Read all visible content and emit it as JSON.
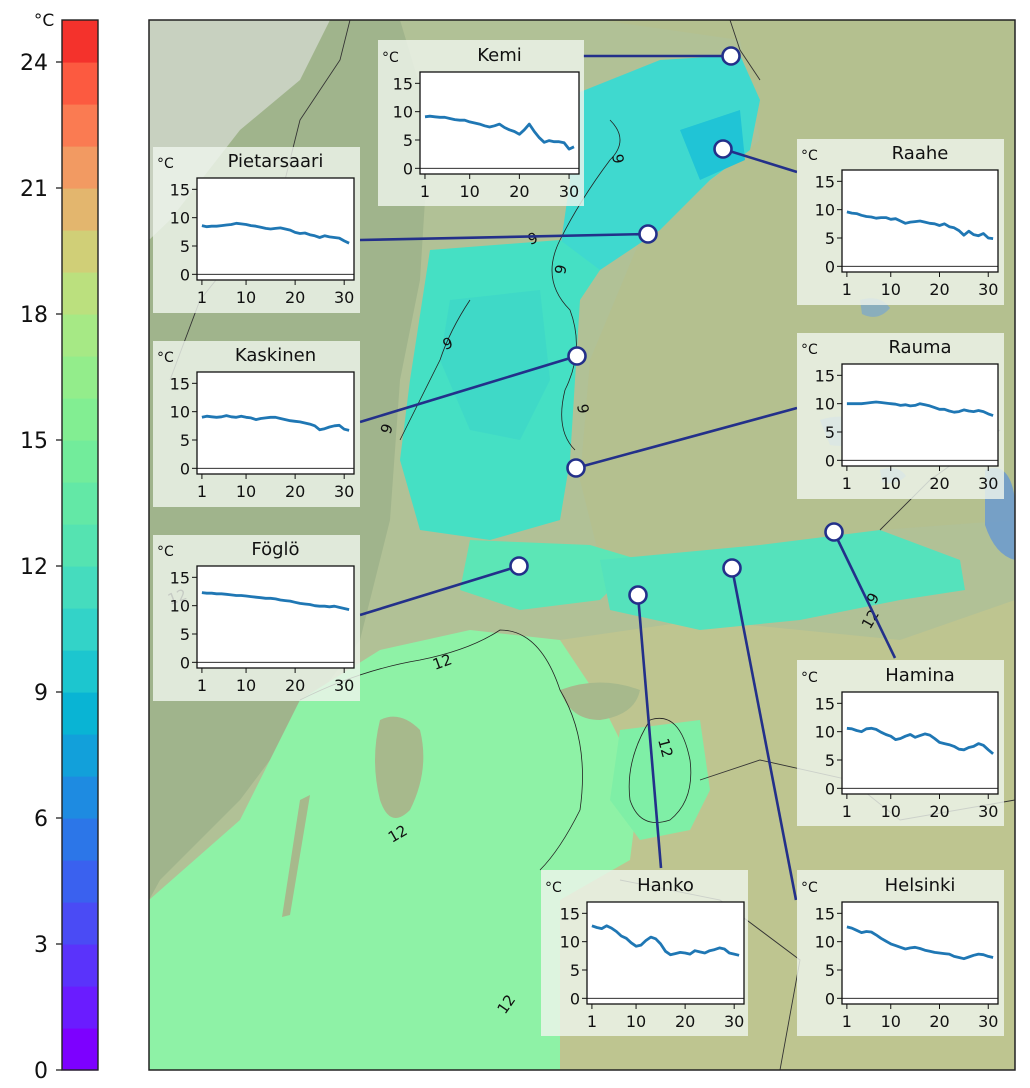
{
  "colorbar": {
    "unit": "°C",
    "ticks": [
      0,
      3,
      6,
      9,
      12,
      15,
      18,
      21,
      24
    ],
    "min": 0,
    "max": 25,
    "colors": [
      "#7d00ff",
      "#6a1cff",
      "#5a33fb",
      "#4a4bf5",
      "#3a61ef",
      "#2c76e8",
      "#1e8be1",
      "#12a0da",
      "#09b4d4",
      "#1cc6cf",
      "#33d3c8",
      "#45dcbe",
      "#55e3b1",
      "#63e8a6",
      "#72ec9b",
      "#82ee92",
      "#93ed8b",
      "#a6e985",
      "#bbe07e",
      "#d0cf77",
      "#e3b66e",
      "#f29a62",
      "#fa7b52",
      "#fc5a40",
      "#f4322c"
    ]
  },
  "map": {
    "contour_labels": [
      "9",
      "9",
      "9",
      "9",
      "9",
      "9",
      "9",
      "9",
      "12",
      "12",
      "12",
      "12",
      "12",
      "12"
    ]
  },
  "chart_data": [
    {
      "type": "line",
      "title": "Kemi",
      "ylabel": "°C",
      "xlim": [
        0,
        32
      ],
      "ylim": [
        -1,
        17
      ],
      "xticks": [
        1,
        10,
        20,
        30
      ],
      "yticks": [
        0,
        5,
        10,
        15
      ],
      "series": [
        {
          "x": [
            1,
            2,
            3,
            4,
            5,
            6,
            7,
            8,
            9,
            10,
            11,
            12,
            13,
            14,
            15,
            16,
            17,
            18,
            19,
            20,
            21,
            22,
            23,
            24,
            25,
            26,
            27,
            28,
            29,
            30,
            31
          ],
          "values": [
            9.1,
            9.2,
            9.1,
            9.0,
            9.0,
            8.8,
            8.6,
            8.5,
            8.5,
            8.2,
            8.0,
            7.8,
            7.5,
            7.3,
            7.5,
            7.8,
            7.2,
            6.8,
            6.5,
            6.0,
            6.8,
            7.8,
            6.5,
            5.4,
            4.6,
            4.9,
            4.7,
            4.7,
            4.5,
            3.4,
            3.8
          ]
        }
      ]
    },
    {
      "type": "line",
      "title": "Pietarsaari",
      "ylabel": "°C",
      "xlim": [
        0,
        32
      ],
      "ylim": [
        -1,
        17
      ],
      "xticks": [
        1,
        10,
        20,
        30
      ],
      "yticks": [
        0,
        5,
        10,
        15
      ],
      "series": [
        {
          "x": [
            1,
            2,
            3,
            4,
            5,
            6,
            7,
            8,
            9,
            10,
            11,
            12,
            13,
            14,
            15,
            16,
            17,
            18,
            19,
            20,
            21,
            22,
            23,
            24,
            25,
            26,
            27,
            28,
            29,
            30,
            31
          ],
          "values": [
            8.6,
            8.4,
            8.5,
            8.5,
            8.6,
            8.7,
            8.8,
            9.0,
            8.9,
            8.8,
            8.6,
            8.5,
            8.3,
            8.1,
            8.0,
            8.1,
            8.2,
            8.0,
            7.8,
            7.4,
            7.2,
            7.3,
            7.0,
            6.8,
            6.5,
            6.8,
            6.6,
            6.5,
            6.4,
            5.9,
            5.5
          ]
        }
      ]
    },
    {
      "type": "line",
      "title": "Raahe",
      "ylabel": "°C",
      "xlim": [
        0,
        32
      ],
      "ylim": [
        -1,
        17
      ],
      "xticks": [
        1,
        10,
        20,
        30
      ],
      "yticks": [
        0,
        5,
        10,
        15
      ],
      "series": [
        {
          "x": [
            1,
            2,
            3,
            4,
            5,
            6,
            7,
            8,
            9,
            10,
            11,
            12,
            13,
            14,
            15,
            16,
            17,
            18,
            19,
            20,
            21,
            22,
            23,
            24,
            25,
            26,
            27,
            28,
            29,
            30,
            31
          ],
          "values": [
            9.6,
            9.4,
            9.3,
            9.0,
            8.8,
            8.7,
            8.5,
            8.6,
            8.6,
            8.3,
            8.4,
            8.0,
            7.6,
            7.8,
            7.9,
            8.0,
            7.8,
            7.6,
            7.5,
            7.2,
            7.5,
            7.0,
            6.8,
            6.3,
            5.5,
            6.2,
            5.6,
            5.4,
            5.8,
            5.0,
            4.9
          ]
        }
      ]
    },
    {
      "type": "line",
      "title": "Kaskinen",
      "ylabel": "°C",
      "xlim": [
        0,
        32
      ],
      "ylim": [
        -1,
        17
      ],
      "xticks": [
        1,
        10,
        20,
        30
      ],
      "yticks": [
        0,
        5,
        10,
        15
      ],
      "series": [
        {
          "x": [
            1,
            2,
            3,
            4,
            5,
            6,
            7,
            8,
            9,
            10,
            11,
            12,
            13,
            14,
            15,
            16,
            17,
            18,
            19,
            20,
            21,
            22,
            23,
            24,
            25,
            26,
            27,
            28,
            29,
            30,
            31
          ],
          "values": [
            9.0,
            9.2,
            9.1,
            9.0,
            9.1,
            9.3,
            9.1,
            9.0,
            9.2,
            9.0,
            8.9,
            8.6,
            8.8,
            8.9,
            9.0,
            9.0,
            8.8,
            8.6,
            8.4,
            8.3,
            8.2,
            8.0,
            7.8,
            7.5,
            6.8,
            7.0,
            7.3,
            7.5,
            7.6,
            6.9,
            6.7
          ]
        }
      ]
    },
    {
      "type": "line",
      "title": "Rauma",
      "ylabel": "°C",
      "xlim": [
        0,
        32
      ],
      "ylim": [
        -1,
        17
      ],
      "xticks": [
        1,
        10,
        20,
        30
      ],
      "yticks": [
        0,
        5,
        10,
        15
      ],
      "series": [
        {
          "x": [
            1,
            2,
            3,
            4,
            5,
            6,
            7,
            8,
            9,
            10,
            11,
            12,
            13,
            14,
            15,
            16,
            17,
            18,
            19,
            20,
            21,
            22,
            23,
            24,
            25,
            26,
            27,
            28,
            29,
            30,
            31
          ],
          "values": [
            10.0,
            10.0,
            10.0,
            10.0,
            10.1,
            10.2,
            10.3,
            10.2,
            10.1,
            10.0,
            9.9,
            9.7,
            9.8,
            9.6,
            9.7,
            10.0,
            9.8,
            9.6,
            9.3,
            9.0,
            9.0,
            8.7,
            8.5,
            8.6,
            8.9,
            8.7,
            8.6,
            8.8,
            8.6,
            8.2,
            7.9
          ]
        }
      ]
    },
    {
      "type": "line",
      "title": "Föglö",
      "ylabel": "°C",
      "xlim": [
        0,
        32
      ],
      "ylim": [
        -1,
        17
      ],
      "xticks": [
        1,
        10,
        20,
        30
      ],
      "yticks": [
        0,
        5,
        10,
        15
      ],
      "series": [
        {
          "x": [
            1,
            2,
            3,
            4,
            5,
            6,
            7,
            8,
            9,
            10,
            11,
            12,
            13,
            14,
            15,
            16,
            17,
            18,
            19,
            20,
            21,
            22,
            23,
            24,
            25,
            26,
            27,
            28,
            29,
            30,
            31
          ],
          "values": [
            12.3,
            12.2,
            12.2,
            12.1,
            12.1,
            12.0,
            11.9,
            11.8,
            11.8,
            11.7,
            11.6,
            11.5,
            11.4,
            11.3,
            11.3,
            11.2,
            11.0,
            10.9,
            10.8,
            10.6,
            10.4,
            10.3,
            10.2,
            10.0,
            9.9,
            9.9,
            9.8,
            9.9,
            9.7,
            9.5,
            9.3
          ]
        }
      ]
    },
    {
      "type": "line",
      "title": "Hamina",
      "ylabel": "°C",
      "xlim": [
        0,
        32
      ],
      "ylim": [
        -1,
        17
      ],
      "xticks": [
        1,
        10,
        20,
        30
      ],
      "yticks": [
        0,
        5,
        10,
        15
      ],
      "series": [
        {
          "x": [
            1,
            2,
            3,
            4,
            5,
            6,
            7,
            8,
            9,
            10,
            11,
            12,
            13,
            14,
            15,
            16,
            17,
            18,
            19,
            20,
            21,
            22,
            23,
            24,
            25,
            26,
            27,
            28,
            29,
            30,
            31
          ],
          "values": [
            10.6,
            10.5,
            10.2,
            10.0,
            10.5,
            10.6,
            10.4,
            9.9,
            9.5,
            9.2,
            8.6,
            8.8,
            9.2,
            9.5,
            9.0,
            9.3,
            9.6,
            9.4,
            8.8,
            8.1,
            7.9,
            7.7,
            7.4,
            6.9,
            6.8,
            7.2,
            7.4,
            7.9,
            7.6,
            6.8,
            6.1
          ]
        }
      ]
    },
    {
      "type": "line",
      "title": "Hanko",
      "ylabel": "°C",
      "xlim": [
        0,
        32
      ],
      "ylim": [
        -1,
        17
      ],
      "xticks": [
        1,
        10,
        20,
        30
      ],
      "yticks": [
        0,
        5,
        10,
        15
      ],
      "series": [
        {
          "x": [
            1,
            2,
            3,
            4,
            5,
            6,
            7,
            8,
            9,
            10,
            11,
            12,
            13,
            14,
            15,
            16,
            17,
            18,
            19,
            20,
            21,
            22,
            23,
            24,
            25,
            26,
            27,
            28,
            29,
            30,
            31
          ],
          "values": [
            12.8,
            12.5,
            12.3,
            12.8,
            12.4,
            11.8,
            11.0,
            10.6,
            9.8,
            9.2,
            9.4,
            10.2,
            10.8,
            10.5,
            9.6,
            8.3,
            7.7,
            7.9,
            8.1,
            8.0,
            7.8,
            8.4,
            8.2,
            8.0,
            8.4,
            8.6,
            8.9,
            8.7,
            8.0,
            7.8,
            7.6
          ]
        }
      ]
    },
    {
      "type": "line",
      "title": "Helsinki",
      "ylabel": "°C",
      "xlim": [
        0,
        32
      ],
      "ylim": [
        -1,
        17
      ],
      "xticks": [
        1,
        10,
        20,
        30
      ],
      "yticks": [
        0,
        5,
        10,
        15
      ],
      "series": [
        {
          "x": [
            1,
            2,
            3,
            4,
            5,
            6,
            7,
            8,
            9,
            10,
            11,
            12,
            13,
            14,
            15,
            16,
            17,
            18,
            19,
            20,
            21,
            22,
            23,
            24,
            25,
            26,
            27,
            28,
            29,
            30,
            31
          ],
          "values": [
            12.6,
            12.4,
            12.0,
            11.6,
            11.8,
            11.7,
            11.2,
            10.6,
            10.1,
            9.6,
            9.3,
            9.0,
            8.7,
            8.9,
            9.0,
            8.8,
            8.5,
            8.3,
            8.1,
            8.0,
            7.9,
            7.8,
            7.4,
            7.2,
            7.0,
            7.3,
            7.6,
            7.8,
            7.7,
            7.4,
            7.2
          ]
        }
      ]
    }
  ]
}
